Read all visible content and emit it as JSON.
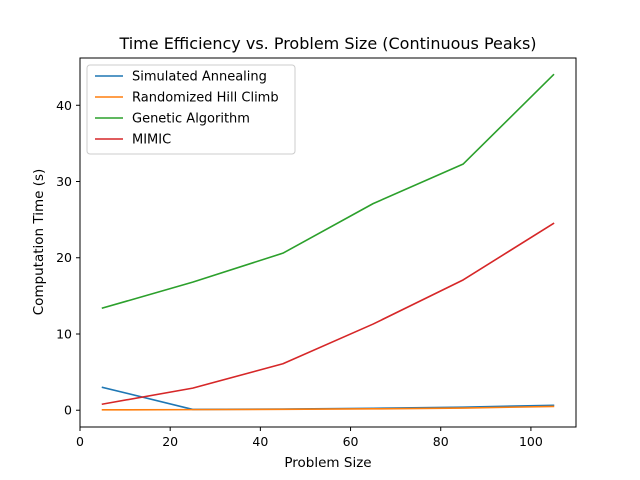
{
  "chart_data": {
    "type": "line",
    "title": "Time Efficiency vs. Problem Size (Continuous Peaks)",
    "xlabel": "Problem Size",
    "ylabel": "Computation Time (s)",
    "xlim": [
      0,
      110
    ],
    "ylim": [
      -2.2,
      46.2
    ],
    "xticks": [
      0,
      20,
      40,
      60,
      80,
      100
    ],
    "yticks": [
      0,
      10,
      20,
      30,
      40
    ],
    "grid": false,
    "legend_position": "top-left",
    "x": [
      5,
      25,
      45,
      65,
      85,
      105
    ],
    "series": [
      {
        "name": "Simulated Annealing",
        "color": "#1f77b4",
        "values": [
          3.0,
          0.1,
          0.15,
          0.25,
          0.4,
          0.65
        ]
      },
      {
        "name": "Randomized Hill Climb",
        "color": "#ff7f0e",
        "values": [
          0.05,
          0.08,
          0.12,
          0.18,
          0.28,
          0.5
        ]
      },
      {
        "name": "Genetic Algorithm",
        "color": "#2ca02c",
        "values": [
          13.4,
          16.8,
          20.6,
          27.1,
          32.3,
          44.0
        ]
      },
      {
        "name": "MIMIC",
        "color": "#d62728",
        "values": [
          0.8,
          2.9,
          6.1,
          11.3,
          17.1,
          24.5
        ]
      }
    ]
  }
}
